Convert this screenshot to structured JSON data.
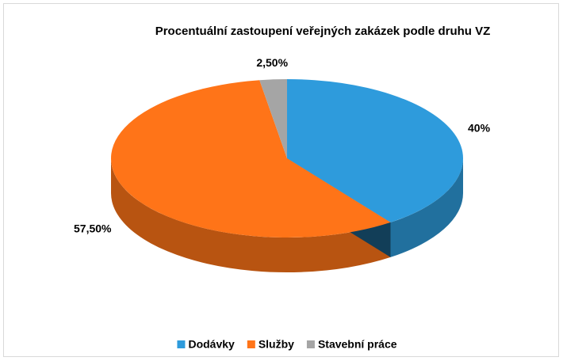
{
  "chart_data": {
    "type": "pie",
    "title": "Procentuální zastoupení veřejných zakázek podle druhu VZ",
    "categories": [
      "Dodávky",
      "Služby",
      "Stavební práce"
    ],
    "values": [
      40,
      57.5,
      2.5
    ],
    "value_labels": [
      "40%",
      "57,50%",
      "2,50%"
    ],
    "colors": [
      "#2e9bdc",
      "#ff7418",
      "#a5a5a5"
    ],
    "legend": "bottom"
  }
}
